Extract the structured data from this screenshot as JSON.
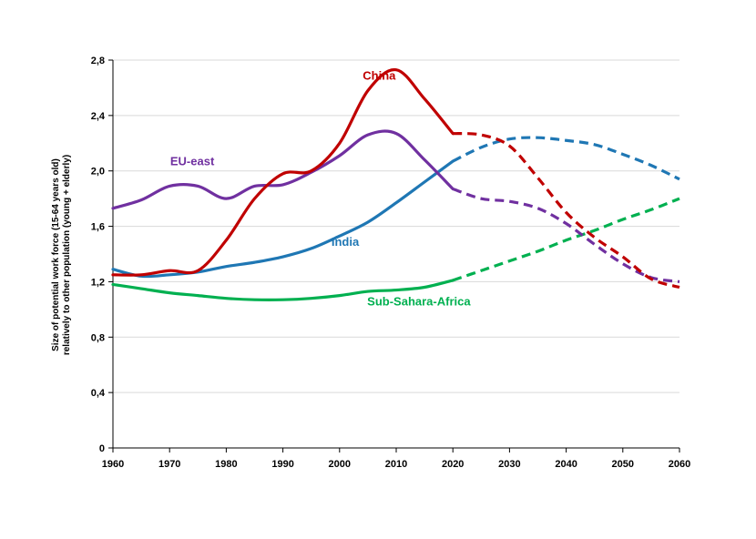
{
  "chart_data": {
    "type": "line",
    "title": "",
    "xlabel": "",
    "ylabel_line1": "Size of potential work force (15-64 years old)",
    "ylabel_line2": "relatively to other population (young + elderly)",
    "xlim": [
      1960,
      2060
    ],
    "ylim": [
      0,
      2.8
    ],
    "x_ticks": [
      1960,
      1970,
      1980,
      1990,
      2000,
      2010,
      2020,
      2030,
      2040,
      2050,
      2060
    ],
    "y_ticks": [
      0,
      0.4,
      0.8,
      1.2,
      1.6,
      2.0,
      2.4,
      2.8
    ],
    "y_tick_labels": [
      "0",
      "0,4",
      "0,8",
      "1,2",
      "1,6",
      "2,0",
      "2,4",
      "2,8"
    ],
    "grid": true,
    "projection_start": 2020,
    "series": [
      {
        "name": "China",
        "color": "#c00000",
        "historical": [
          [
            1960,
            1.25
          ],
          [
            1965,
            1.25
          ],
          [
            1970,
            1.28
          ],
          [
            1975,
            1.28
          ],
          [
            1980,
            1.5
          ],
          [
            1985,
            1.8
          ],
          [
            1990,
            1.98
          ],
          [
            1995,
            2.0
          ],
          [
            2000,
            2.2
          ],
          [
            2005,
            2.58
          ],
          [
            2010,
            2.73
          ],
          [
            2015,
            2.52
          ],
          [
            2020,
            2.27
          ]
        ],
        "projected": [
          [
            2020,
            2.27
          ],
          [
            2025,
            2.26
          ],
          [
            2030,
            2.18
          ],
          [
            2035,
            1.95
          ],
          [
            2040,
            1.7
          ],
          [
            2045,
            1.52
          ],
          [
            2050,
            1.38
          ],
          [
            2055,
            1.22
          ],
          [
            2060,
            1.16
          ]
        ]
      },
      {
        "name": "EU-east",
        "color": "#7030a0",
        "historical": [
          [
            1960,
            1.73
          ],
          [
            1965,
            1.79
          ],
          [
            1970,
            1.89
          ],
          [
            1975,
            1.89
          ],
          [
            1980,
            1.8
          ],
          [
            1985,
            1.89
          ],
          [
            1990,
            1.9
          ],
          [
            1995,
            1.99
          ],
          [
            2000,
            2.11
          ],
          [
            2005,
            2.26
          ],
          [
            2010,
            2.27
          ],
          [
            2015,
            2.08
          ],
          [
            2020,
            1.87
          ]
        ],
        "projected": [
          [
            2020,
            1.87
          ],
          [
            2025,
            1.8
          ],
          [
            2030,
            1.78
          ],
          [
            2035,
            1.73
          ],
          [
            2040,
            1.62
          ],
          [
            2045,
            1.47
          ],
          [
            2050,
            1.33
          ],
          [
            2055,
            1.23
          ],
          [
            2060,
            1.2
          ]
        ]
      },
      {
        "name": "India",
        "color": "#1f77b4",
        "historical": [
          [
            1960,
            1.29
          ],
          [
            1965,
            1.24
          ],
          [
            1970,
            1.25
          ],
          [
            1975,
            1.27
          ],
          [
            1980,
            1.31
          ],
          [
            1985,
            1.34
          ],
          [
            1990,
            1.38
          ],
          [
            1995,
            1.44
          ],
          [
            2000,
            1.53
          ],
          [
            2005,
            1.63
          ],
          [
            2010,
            1.77
          ],
          [
            2015,
            1.92
          ],
          [
            2020,
            2.07
          ]
        ],
        "projected": [
          [
            2020,
            2.07
          ],
          [
            2025,
            2.17
          ],
          [
            2030,
            2.23
          ],
          [
            2035,
            2.24
          ],
          [
            2040,
            2.22
          ],
          [
            2045,
            2.19
          ],
          [
            2050,
            2.12
          ],
          [
            2055,
            2.04
          ],
          [
            2060,
            1.94
          ]
        ]
      },
      {
        "name": "Sub-Sahara-Africa",
        "color": "#00b050",
        "historical": [
          [
            1960,
            1.18
          ],
          [
            1965,
            1.15
          ],
          [
            1970,
            1.12
          ],
          [
            1975,
            1.1
          ],
          [
            1980,
            1.08
          ],
          [
            1985,
            1.07
          ],
          [
            1990,
            1.07
          ],
          [
            1995,
            1.08
          ],
          [
            2000,
            1.1
          ],
          [
            2005,
            1.13
          ],
          [
            2010,
            1.14
          ],
          [
            2015,
            1.16
          ],
          [
            2020,
            1.21
          ]
        ],
        "projected": [
          [
            2020,
            1.21
          ],
          [
            2025,
            1.28
          ],
          [
            2030,
            1.35
          ],
          [
            2035,
            1.42
          ],
          [
            2040,
            1.5
          ],
          [
            2045,
            1.57
          ],
          [
            2050,
            1.65
          ],
          [
            2055,
            1.72
          ],
          [
            2060,
            1.8
          ]
        ]
      }
    ],
    "annotations": [
      {
        "text": "China",
        "series": "China",
        "x": 2007,
        "y": 2.66
      },
      {
        "text": "EU-east",
        "series": "EU-east",
        "x": 1974,
        "y": 2.04
      },
      {
        "text": "India",
        "series": "India",
        "x": 2001,
        "y": 1.46
      },
      {
        "text": "Sub-Sahara-Africa",
        "series": "Sub-Sahara-Africa",
        "x": 2014,
        "y": 1.03
      }
    ]
  }
}
